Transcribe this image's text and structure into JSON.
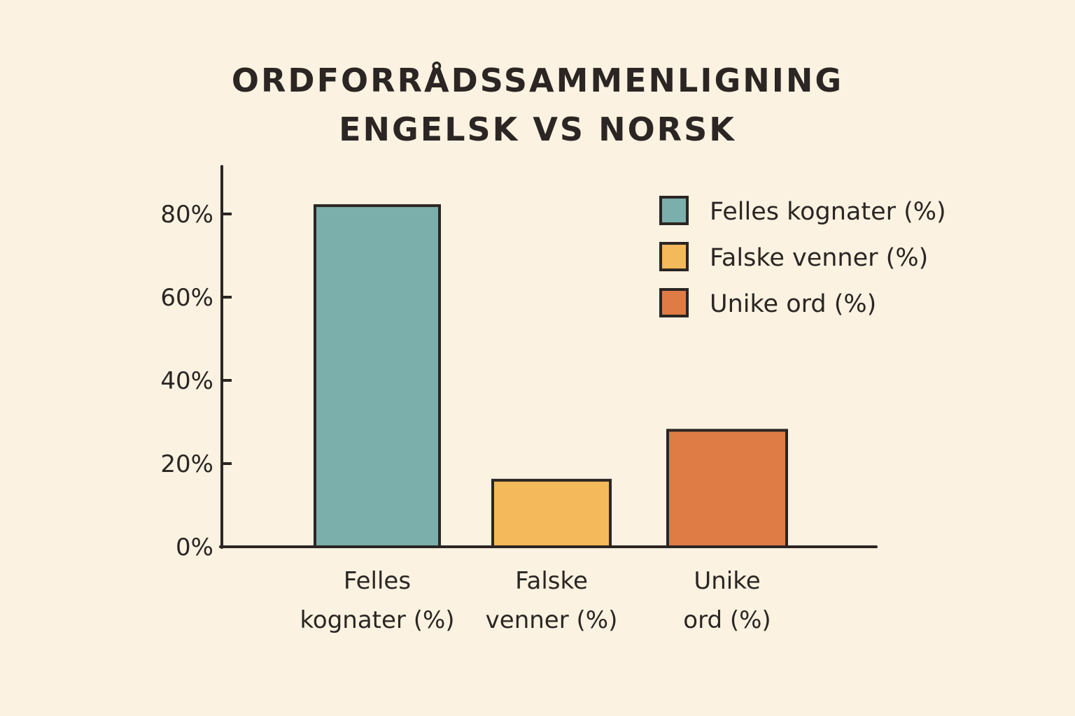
{
  "chart_data": {
    "type": "bar",
    "title_lines": [
      "ORDFORRÅDSSAMMENLIGNING",
      "ENGELSK VS NORSK"
    ],
    "xlabel": "",
    "ylabel": "",
    "categories": [
      [
        "Felles",
        "kognater (%)"
      ],
      [
        "Falske",
        "venner (%)"
      ],
      [
        "Unike",
        "ord (%)"
      ]
    ],
    "values": [
      82,
      16,
      28
    ],
    "ylim": [
      0,
      90
    ],
    "yticks": [
      0,
      20,
      40,
      60,
      80
    ],
    "ytick_labels": [
      "0%",
      "20%",
      "40%",
      "60%",
      "80%"
    ],
    "colors": [
      "#7aafac",
      "#f4b95a",
      "#df7c45"
    ],
    "legend": {
      "placement": "top-right",
      "entries": [
        "Felles kognater (%)",
        "Falske venner (%)",
        "Unike ord (%)"
      ]
    },
    "grid": false
  }
}
